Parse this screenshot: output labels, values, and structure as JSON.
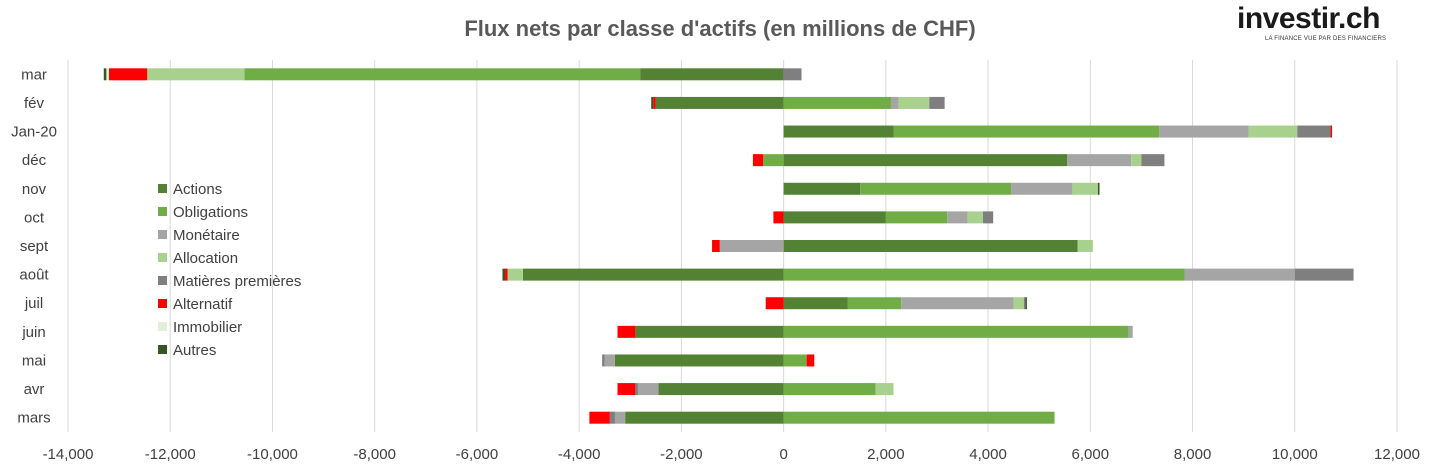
{
  "logo": {
    "text": "investir.ch",
    "tagline": "LA FINANCE VUE PAR DES FINANCIERS"
  },
  "chart_data": {
    "type": "bar",
    "orientation": "horizontal",
    "stacked": true,
    "title": "Flux nets par classe d'actifs (en millions de CHF)",
    "xlabel": "",
    "ylabel": "",
    "xlim": [
      -14000,
      12000
    ],
    "xticks": [
      -14000,
      -12000,
      -10000,
      -8000,
      -6000,
      -4000,
      -2000,
      0,
      2000,
      4000,
      6000,
      8000,
      10000,
      12000
    ],
    "xtick_labels": [
      "-14,000",
      "-12,000",
      "-10,000",
      "-8,000",
      "-6,000",
      "-4,000",
      "-2,000",
      "0",
      "2,000",
      "4,000",
      "6,000",
      "8,000",
      "10,000",
      "12,000"
    ],
    "grid": "vertical",
    "legend_position": "left",
    "categories": [
      "mar",
      "fév",
      "Jan-20",
      "déc",
      "nov",
      "oct",
      "sept",
      "août",
      "juil",
      "juin",
      "mai",
      "avr",
      "mars"
    ],
    "series": [
      {
        "name": "Actions",
        "color": "#548235",
        "values": [
          -2800,
          -2500,
          2150,
          5550,
          1500,
          2000,
          5750,
          -5100,
          1250,
          -2900,
          -3300,
          -2450,
          -3100
        ]
      },
      {
        "name": "Obligations",
        "color": "#70AD47",
        "values": [
          -7750,
          2100,
          5200,
          -400,
          2950,
          1200,
          0,
          7850,
          1050,
          6750,
          450,
          1800,
          5300
        ]
      },
      {
        "name": "Monétaire",
        "color": "#A5A5A5",
        "values": [
          0,
          150,
          1750,
          1250,
          1200,
          400,
          -1250,
          2150,
          2200,
          80,
          -200,
          -400,
          -200
        ]
      },
      {
        "name": "Allocation",
        "color": "#A9D18E",
        "values": [
          -1900,
          600,
          950,
          200,
          500,
          300,
          300,
          -300,
          200,
          0,
          0,
          350,
          0
        ]
      },
      {
        "name": "Matières premières",
        "color": "#7F7F7F",
        "values": [
          350,
          300,
          650,
          450,
          0,
          200,
          0,
          1150,
          30,
          0,
          -50,
          -50,
          -100
        ]
      },
      {
        "name": "Alternatif",
        "color": "#FF0000",
        "values": [
          -750,
          -50,
          30,
          -200,
          0,
          -200,
          -150,
          -50,
          -350,
          -350,
          150,
          -350,
          -400
        ]
      },
      {
        "name": "Immobilier",
        "color": "#E2EFDA",
        "values": [
          -50,
          0,
          0,
          0,
          0,
          0,
          0,
          0,
          0,
          0,
          0,
          0,
          0
        ]
      },
      {
        "name": "Autres",
        "color": "#375623",
        "values": [
          -50,
          -40,
          0,
          0,
          30,
          0,
          0,
          -50,
          30,
          0,
          0,
          0,
          0
        ]
      }
    ]
  }
}
